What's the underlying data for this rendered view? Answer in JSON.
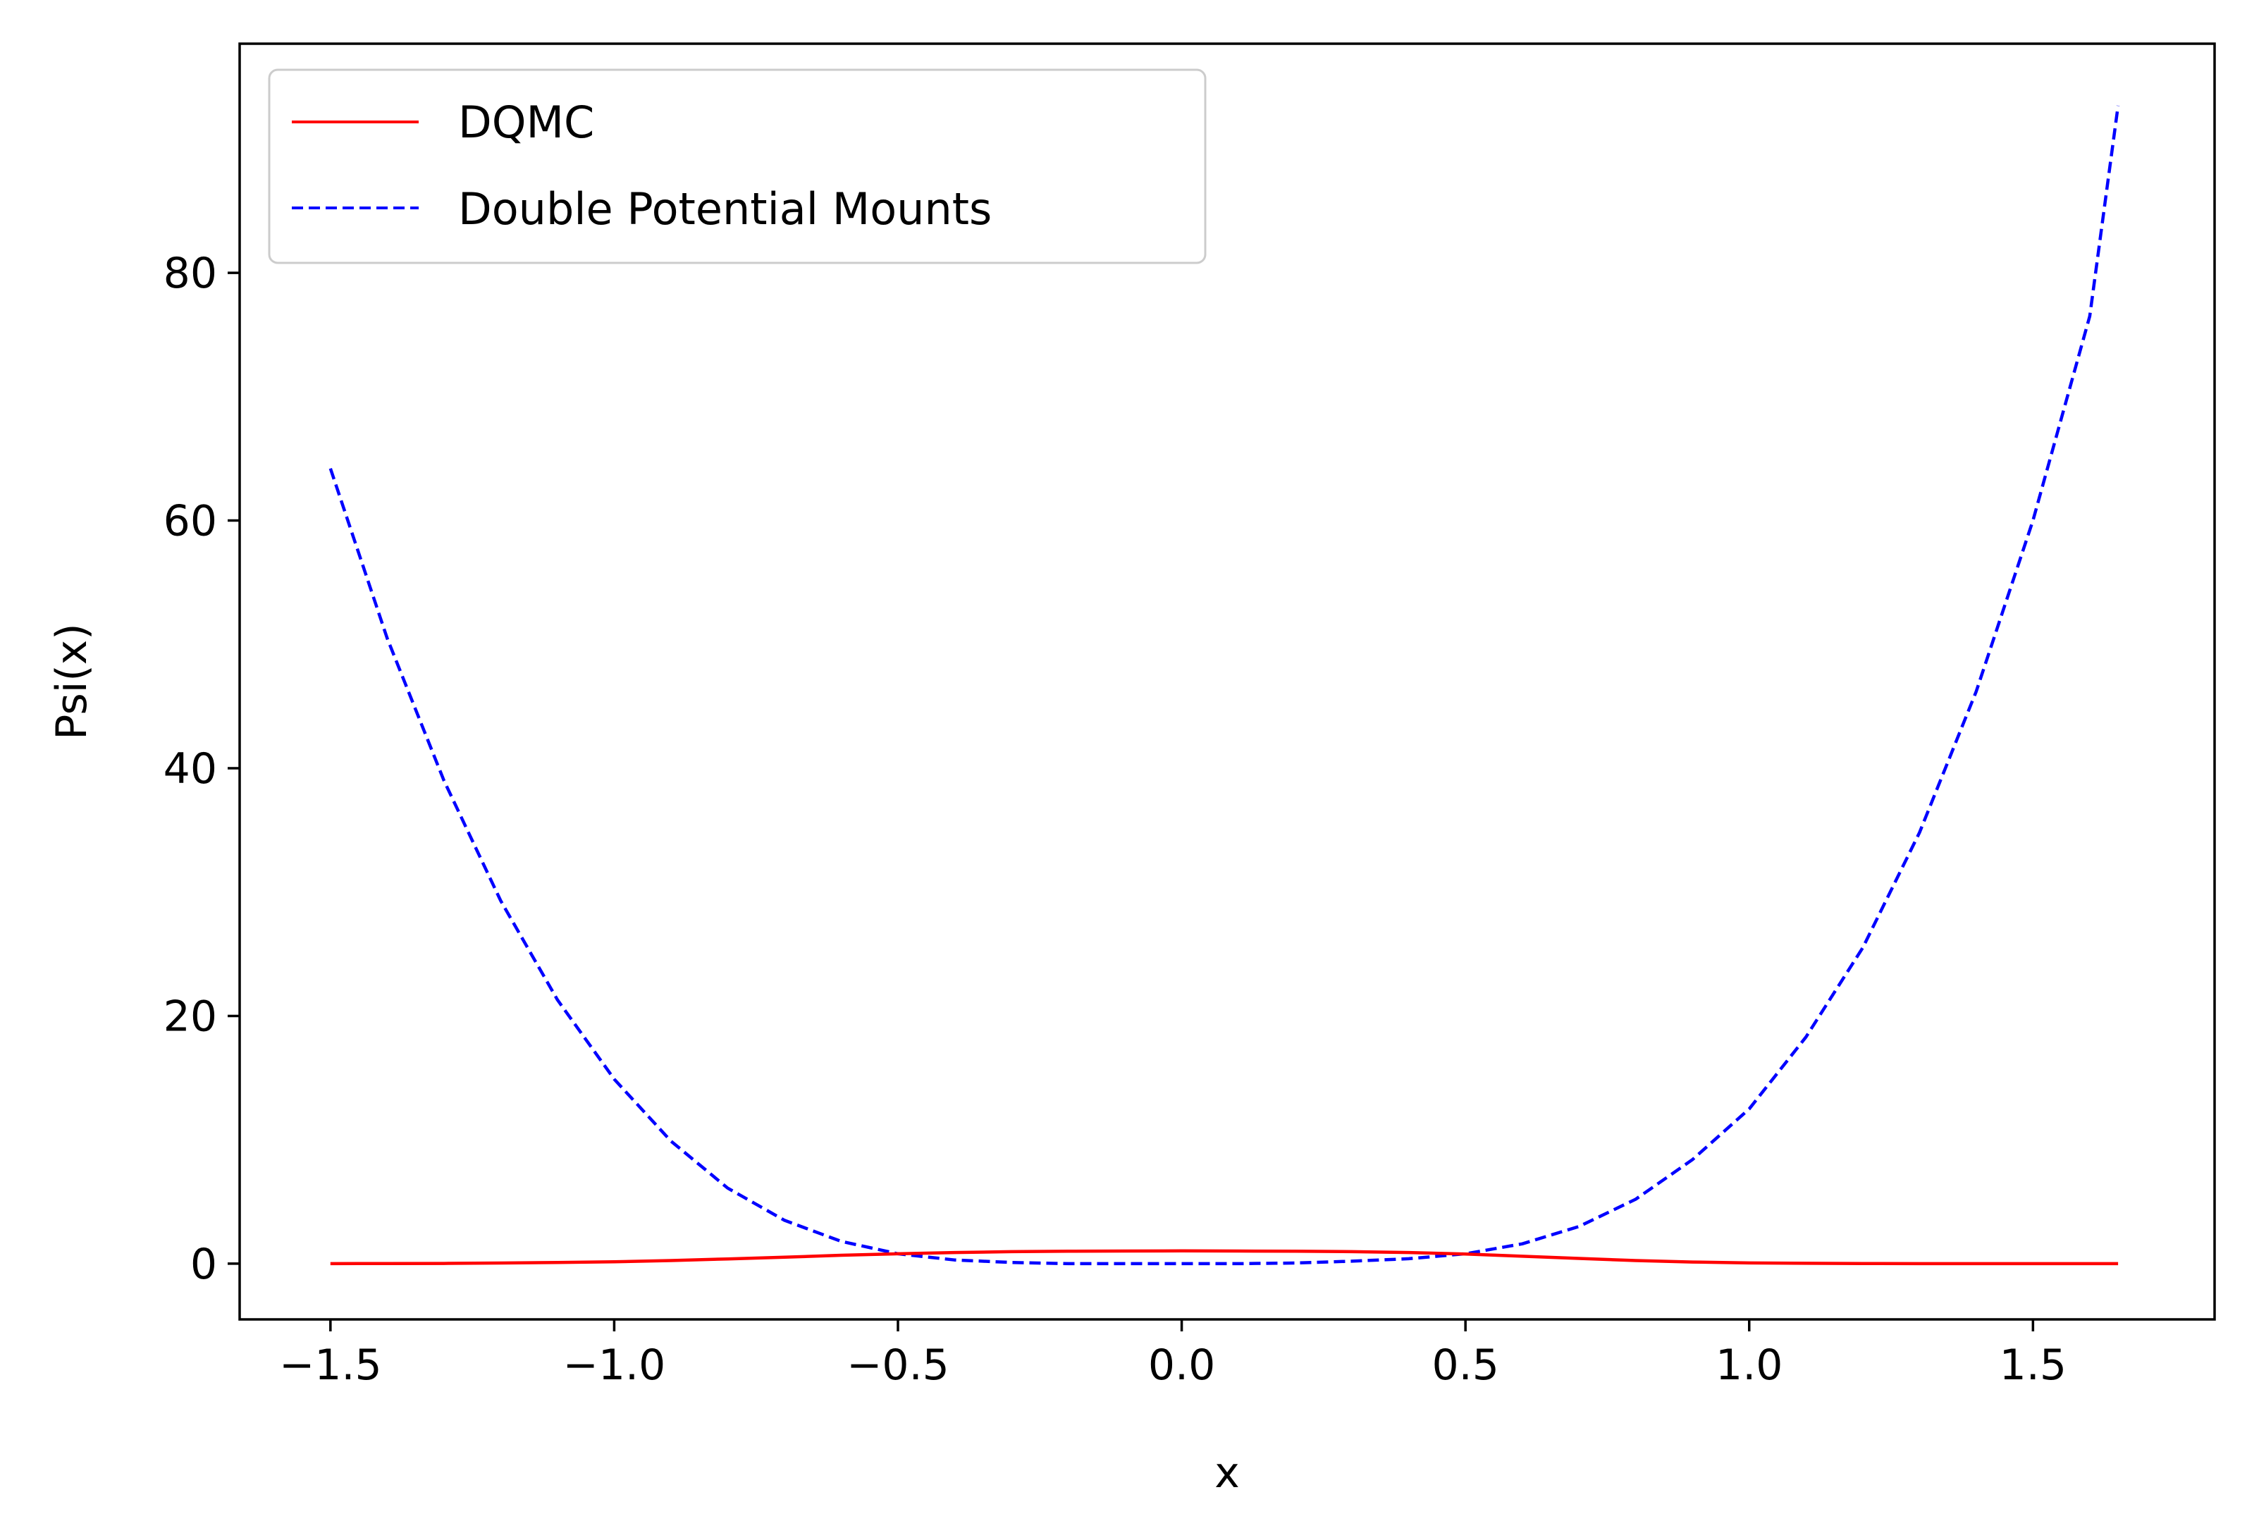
{
  "chart_data": {
    "type": "line",
    "title": "",
    "xlabel": "x",
    "ylabel": "Psi(x)",
    "xlim": [
      -1.66,
      1.82
    ],
    "ylim": [
      -4.5,
      98.5
    ],
    "xticks": [
      -1.5,
      -1.0,
      -0.5,
      0.0,
      0.5,
      1.0,
      1.5
    ],
    "xtick_labels": [
      "−1.5",
      "−1.0",
      "−0.5",
      "0.0",
      "0.5",
      "1.0",
      "1.5"
    ],
    "yticks": [
      0,
      20,
      40,
      60,
      80
    ],
    "ytick_labels": [
      "0",
      "20",
      "40",
      "60",
      "80"
    ],
    "grid": false,
    "legend_position": "upper-left",
    "series": [
      {
        "name": "DQMC",
        "color": "#ff0000",
        "style": "solid",
        "x": [
          -1.5,
          -1.4,
          -1.3,
          -1.2,
          -1.1,
          -1.0,
          -0.9,
          -0.8,
          -0.7,
          -0.6,
          -0.5,
          -0.4,
          -0.3,
          -0.2,
          -0.1,
          0.0,
          0.1,
          0.2,
          0.3,
          0.4,
          0.5,
          0.6,
          0.7,
          0.8,
          0.9,
          1.0,
          1.1,
          1.2,
          1.3,
          1.4,
          1.5,
          1.65
        ],
        "y": [
          0.0,
          0.01,
          0.02,
          0.05,
          0.1,
          0.15,
          0.25,
          0.38,
          0.52,
          0.68,
          0.8,
          0.9,
          0.97,
          1.0,
          1.02,
          1.03,
          1.02,
          1.0,
          0.97,
          0.9,
          0.78,
          0.6,
          0.42,
          0.25,
          0.13,
          0.06,
          0.03,
          0.01,
          0.0,
          0.0,
          0.0,
          0.0
        ]
      },
      {
        "name": "Double Potential Mounts",
        "color": "#0000ff",
        "style": "dashed",
        "x": [
          -1.5,
          -1.4,
          -1.3,
          -1.2,
          -1.1,
          -1.0,
          -0.9,
          -0.8,
          -0.7,
          -0.6,
          -0.5,
          -0.4,
          -0.3,
          -0.2,
          -0.1,
          0.0,
          0.1,
          0.2,
          0.3,
          0.4,
          0.5,
          0.6,
          0.7,
          0.8,
          0.9,
          1.0,
          1.1,
          1.2,
          1.3,
          1.4,
          1.5,
          1.6,
          1.65
        ],
        "y": [
          64.2,
          50.5,
          39.0,
          29.3,
          21.3,
          14.9,
          9.9,
          6.1,
          3.5,
          1.8,
          0.8,
          0.3,
          0.1,
          0.0,
          0.0,
          0.0,
          0.0,
          0.05,
          0.2,
          0.4,
          0.8,
          1.6,
          3.0,
          5.2,
          8.4,
          12.5,
          18.3,
          25.5,
          34.8,
          46.2,
          60.0,
          76.5,
          93.5
        ]
      }
    ]
  }
}
